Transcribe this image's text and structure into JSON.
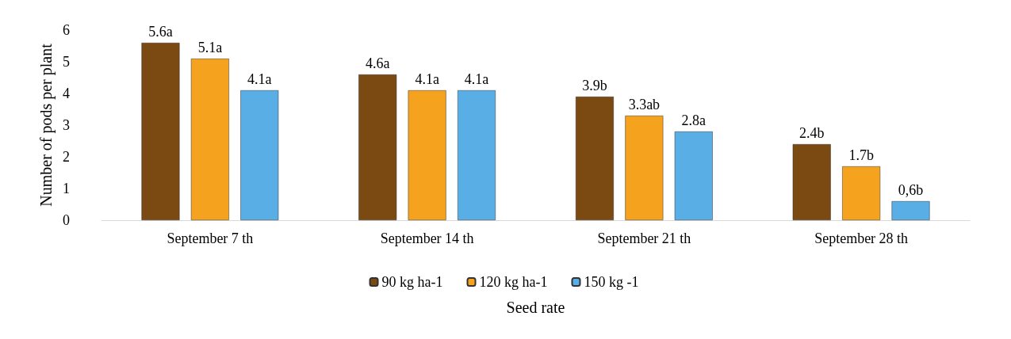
{
  "chart_data": {
    "type": "bar",
    "xlabel": "Seed rate",
    "ylabel": "Number of pods per plant",
    "categories": [
      "September 7 th",
      "September 14 th",
      "September 21 th",
      "September 28 th"
    ],
    "series": [
      {
        "name": "90 kg ha-1",
        "color": "#7a4a12",
        "values": [
          5.6,
          4.6,
          3.9,
          2.4
        ],
        "value_labels": [
          "5.6a",
          "4.6a",
          "3.9b",
          "2.4b"
        ]
      },
      {
        "name": "120 kg ha-1",
        "color": "#f5a21e",
        "values": [
          5.1,
          4.1,
          3.3,
          1.7
        ],
        "value_labels": [
          "5.1a",
          "4.1a",
          "3.3ab",
          "1.7b"
        ]
      },
      {
        "name": "150 kg -1",
        "color": "#5aaee6",
        "values": [
          4.1,
          4.1,
          2.8,
          0.6
        ],
        "value_labels": [
          "4.1a",
          "4.1a",
          "2.8a",
          "0,6b"
        ]
      }
    ],
    "ylim": [
      0,
      6
    ],
    "yticks": [
      0,
      1,
      2,
      3,
      4,
      5,
      6
    ],
    "grid": false,
    "legend": "bottom"
  }
}
